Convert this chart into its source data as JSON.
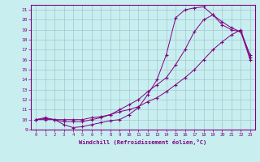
{
  "xlabel": "Windchill (Refroidissement éolien,°C)",
  "ylabel": "",
  "bg_color": "#c8eef0",
  "line_color": "#800080",
  "grid_color": "#a0c8d0",
  "xlim": [
    -0.5,
    23.5
  ],
  "ylim": [
    9,
    21.5
  ],
  "xticks": [
    0,
    1,
    2,
    3,
    4,
    5,
    6,
    7,
    8,
    9,
    10,
    11,
    12,
    13,
    14,
    15,
    16,
    17,
    18,
    19,
    20,
    21,
    22,
    23
  ],
  "yticks": [
    9,
    10,
    11,
    12,
    13,
    14,
    15,
    16,
    17,
    18,
    19,
    20,
    21
  ],
  "curve1_x": [
    0,
    1,
    2,
    3,
    4,
    5,
    6,
    7,
    8,
    9,
    10,
    11,
    12,
    13,
    14,
    15,
    16,
    17,
    18,
    19,
    20,
    21,
    22,
    23
  ],
  "curve1_y": [
    10.0,
    10.2,
    10.0,
    9.5,
    9.2,
    9.3,
    9.5,
    9.7,
    9.9,
    10.0,
    10.5,
    11.2,
    12.5,
    14.0,
    16.5,
    20.2,
    21.0,
    21.2,
    21.3,
    20.5,
    19.5,
    19.0,
    18.8,
    16.0
  ],
  "curve2_x": [
    0,
    1,
    2,
    3,
    4,
    5,
    6,
    7,
    8,
    9,
    10,
    11,
    12,
    13,
    14,
    15,
    16,
    17,
    18,
    19,
    20,
    21,
    22,
    23
  ],
  "curve2_y": [
    10.0,
    10.1,
    10.0,
    9.8,
    9.8,
    9.8,
    10.0,
    10.2,
    10.5,
    11.0,
    11.5,
    12.0,
    12.8,
    13.5,
    14.2,
    15.5,
    17.0,
    18.8,
    20.0,
    20.5,
    19.8,
    19.2,
    18.8,
    16.5
  ],
  "curve3_x": [
    0,
    1,
    2,
    3,
    4,
    5,
    6,
    7,
    8,
    9,
    10,
    11,
    12,
    13,
    14,
    15,
    16,
    17,
    18,
    19,
    20,
    21,
    22,
    23
  ],
  "curve3_y": [
    10.0,
    10.0,
    10.0,
    10.0,
    10.0,
    10.0,
    10.2,
    10.3,
    10.5,
    10.8,
    11.0,
    11.3,
    11.8,
    12.2,
    12.8,
    13.5,
    14.2,
    15.0,
    16.0,
    17.0,
    17.8,
    18.5,
    19.0,
    16.2
  ]
}
